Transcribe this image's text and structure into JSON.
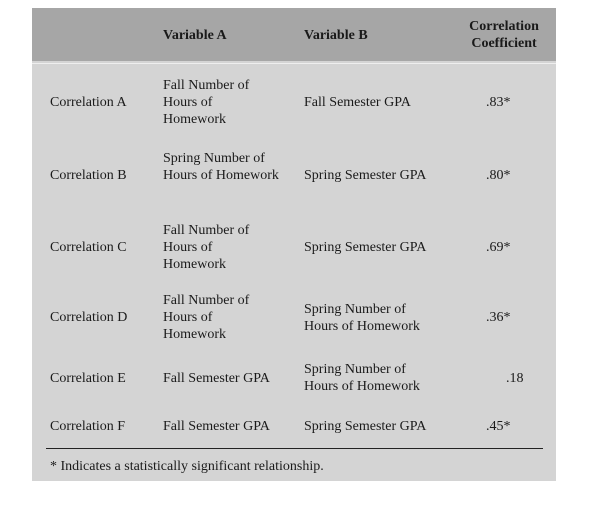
{
  "table": {
    "headers": {
      "label": "",
      "variable_a": "Variable A",
      "variable_b": "Variable B",
      "coefficient_line1": "Correlation",
      "coefficient_line2": "Coefficient"
    },
    "rows": [
      {
        "label": "Correlation A",
        "variable_a": "Fall Number of Hours of Homework",
        "variable_b": "Fall Semester GPA",
        "coefficient": ".83*"
      },
      {
        "label": "Correlation B",
        "variable_a": "Spring Number of Hours of Homework",
        "variable_b": "Spring Semester GPA",
        "coefficient": ".80*"
      },
      {
        "label": "Correlation C",
        "variable_a": "Fall Number of Hours of Homework",
        "variable_b": "Spring Semester GPA",
        "coefficient": ".69*"
      },
      {
        "label": "Correlation D",
        "variable_a": "Fall Number of Hours of Homework",
        "variable_b": "Spring Number of Hours of Homework",
        "coefficient": ".36*"
      },
      {
        "label": "Correlation E",
        "variable_a": "Fall Semester GPA",
        "variable_b": "Spring Number of Hours of Homework",
        "coefficient": ".18"
      },
      {
        "label": "Correlation F",
        "variable_a": "Fall Semester GPA",
        "variable_b": "Spring Semester GPA",
        "coefficient": ".45*"
      }
    ],
    "footnote": "* Indicates a statistically significant relationship."
  }
}
